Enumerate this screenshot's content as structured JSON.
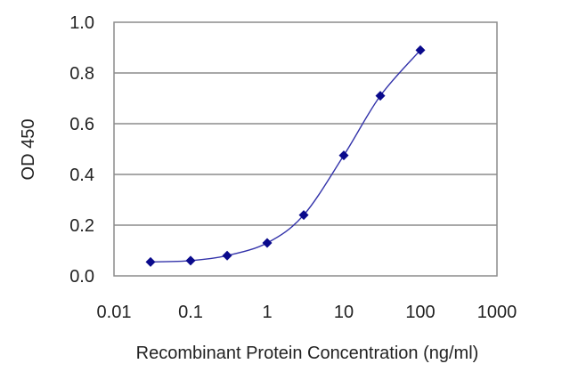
{
  "chart_data": {
    "type": "line",
    "title": "",
    "xlabel": "Recombinant Protein Concentration (ng/ml)",
    "ylabel": "OD 450",
    "xscale": "log",
    "xlim": [
      0.01,
      1000
    ],
    "ylim": [
      0.0,
      1.0
    ],
    "xticks": [
      "0.01",
      "0.1",
      "1",
      "10",
      "100",
      "1000"
    ],
    "yticks": [
      "0.0",
      "0.2",
      "0.4",
      "0.6",
      "0.8",
      "1.0"
    ],
    "grid": "horizontal",
    "legend": "none",
    "series": [
      {
        "x": [
          0.03,
          0.1,
          0.3,
          1,
          3,
          10,
          30,
          100
        ],
        "y": [
          0.055,
          0.06,
          0.08,
          0.13,
          0.24,
          0.475,
          0.71,
          0.89
        ]
      }
    ],
    "colors": {
      "line": "#3333aa",
      "marker": "#0a0a8c",
      "grid": "#8c8c8c",
      "frame": "#8c8c8c"
    }
  }
}
